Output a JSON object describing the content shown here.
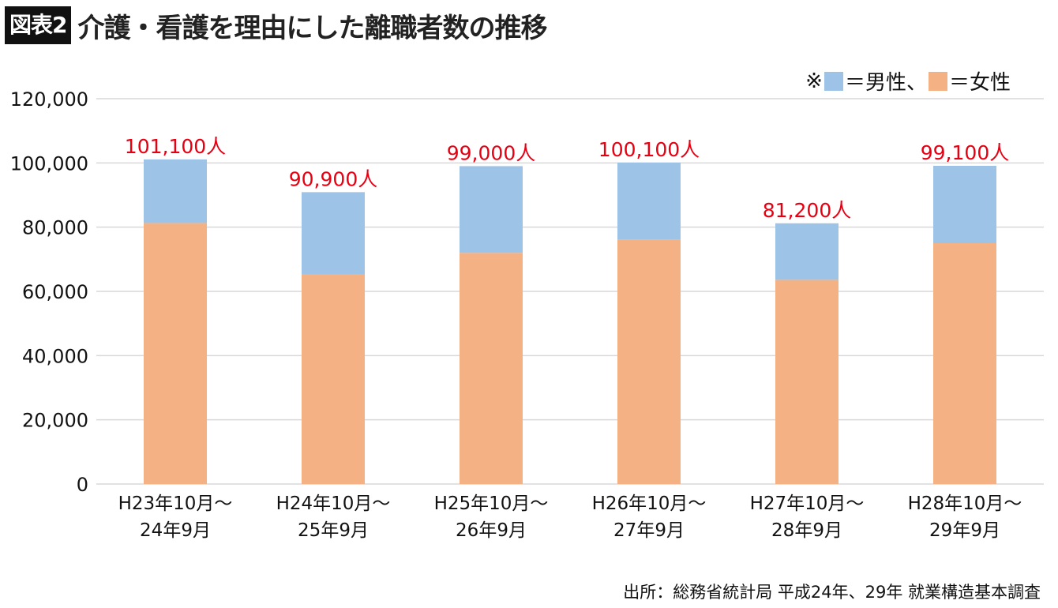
{
  "header": {
    "badge": "図表2",
    "title": "介護・看護を理由にした離職者数の推移"
  },
  "legend": {
    "prefix": "※",
    "male_label": "＝男性、",
    "female_label": "＝女性"
  },
  "source": "出所：総務省統計局 平成24年、29年 就業構造基本調査",
  "colors": {
    "male": "#9dc3e6",
    "female": "#f4b183",
    "data_label": "#e60012",
    "grid": "#d9d9d9"
  },
  "chart_data": {
    "type": "bar",
    "stacked": true,
    "title": "介護・看護を理由にした離職者数の推移",
    "xlabel": "",
    "ylabel": "",
    "ylim": [
      0,
      120000
    ],
    "yticks": [
      0,
      20000,
      40000,
      60000,
      80000,
      100000,
      120000
    ],
    "ytick_labels": [
      "0",
      "20,000",
      "40,000",
      "60,000",
      "80,000",
      "100,000",
      "120,000"
    ],
    "grid": true,
    "legend_position": "top-right",
    "categories": [
      [
        "H23年10月～",
        "24年9月"
      ],
      [
        "H24年10月～",
        "25年9月"
      ],
      [
        "H25年10月～",
        "26年9月"
      ],
      [
        "H26年10月～",
        "27年9月"
      ],
      [
        "H27年10月～",
        "28年9月"
      ],
      [
        "H28年10月～",
        "29年9月"
      ]
    ],
    "series": [
      {
        "name": "女性",
        "values": [
          81300,
          65400,
          72000,
          76200,
          63600,
          75000
        ]
      },
      {
        "name": "男性",
        "values": [
          19800,
          25500,
          27000,
          23900,
          17600,
          24100
        ]
      }
    ],
    "totals": [
      101100,
      90900,
      99000,
      100100,
      81200,
      99100
    ],
    "data_labels": [
      "101,100人",
      "90,900人",
      "99,000人",
      "100,100人",
      "81,200人",
      "99,100人"
    ]
  }
}
